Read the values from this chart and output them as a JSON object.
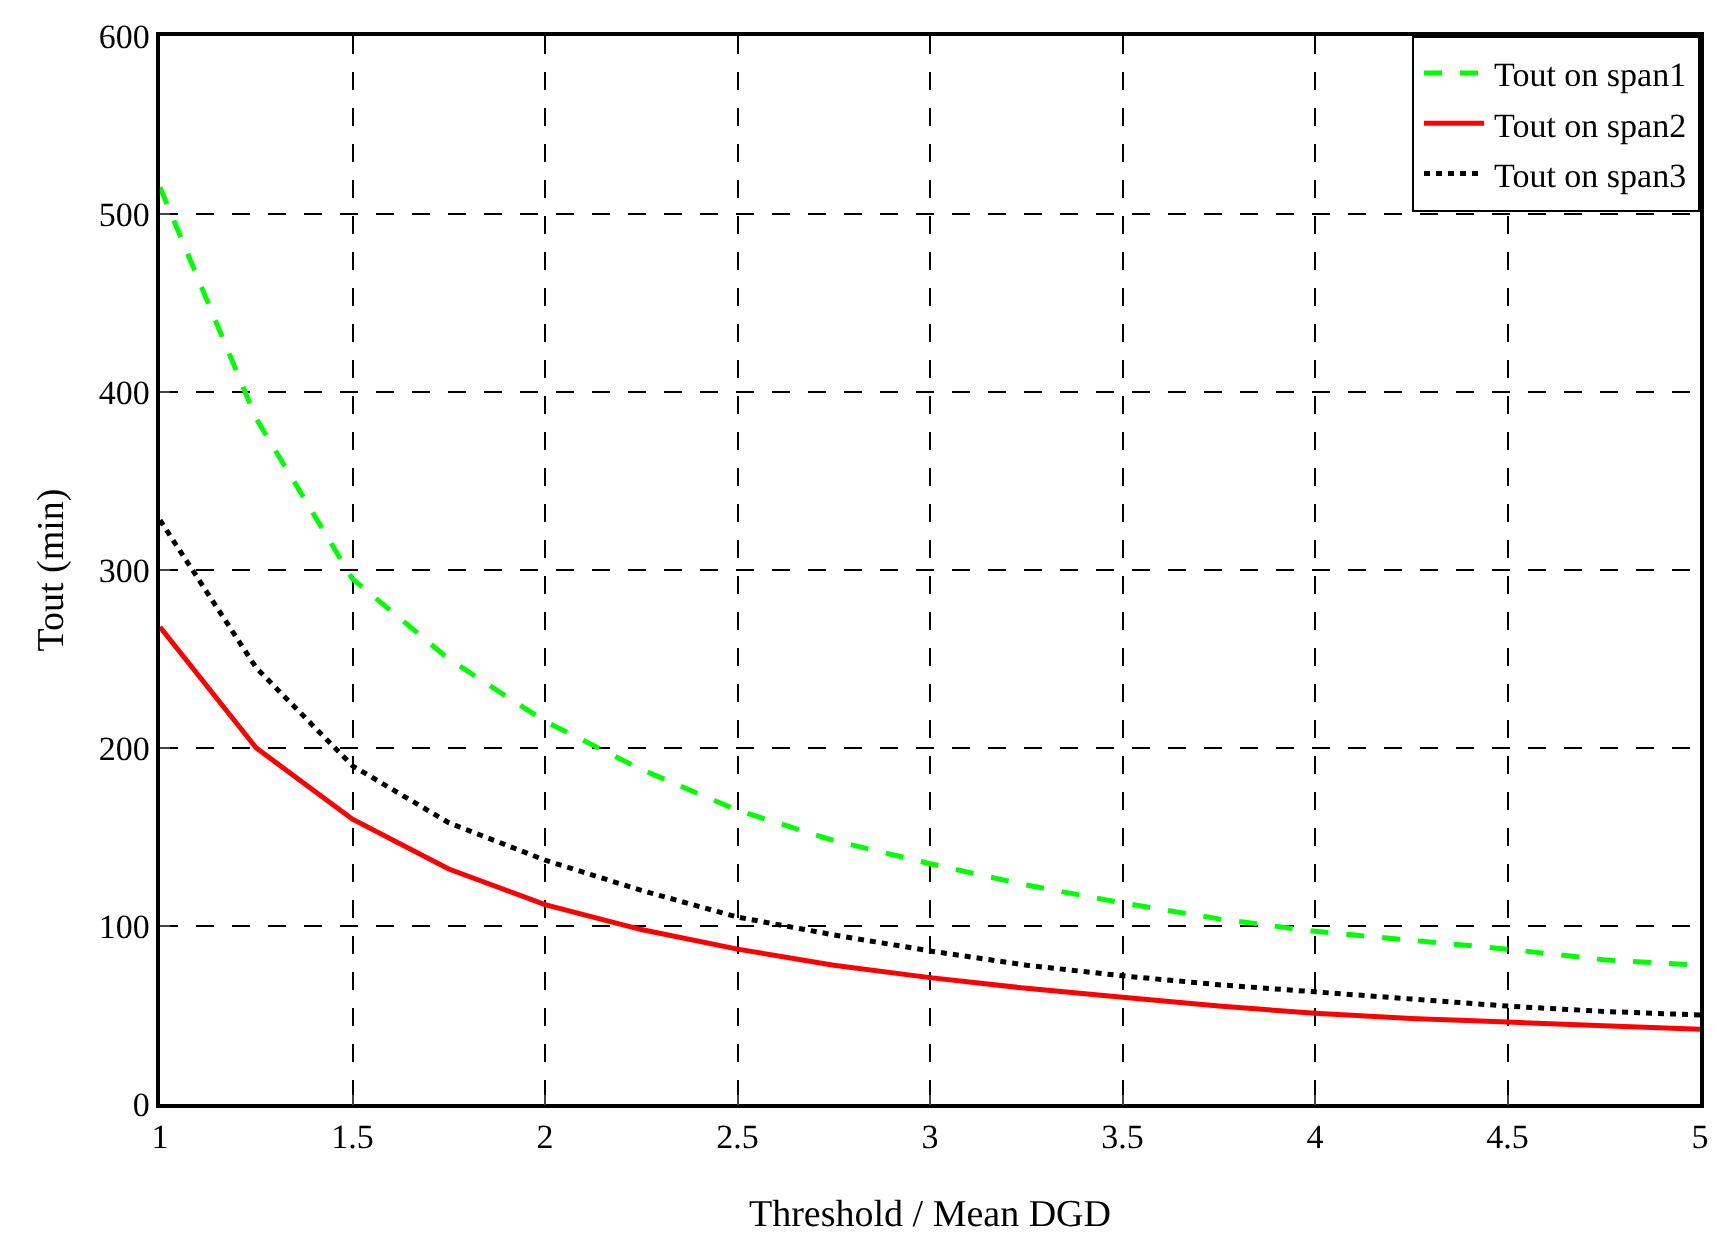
{
  "chart_data": {
    "type": "line",
    "xlabel": "Threshold / Mean DGD",
    "ylabel": "Tout (min)",
    "x": [
      1,
      1.25,
      1.5,
      1.75,
      2,
      2.25,
      2.5,
      2.75,
      3,
      3.25,
      3.5,
      3.75,
      4,
      4.25,
      4.5,
      4.75,
      5
    ],
    "series": [
      {
        "name": "Tout on span1",
        "color": "#00ff00",
        "line_style": "dashed",
        "values": [
          515,
          385,
          295,
          250,
          215,
          188,
          165,
          148,
          135,
          123,
          113,
          104,
          97,
          92,
          87,
          81,
          78
        ]
      },
      {
        "name": "Tout on span2",
        "color": "#ff0000",
        "line_style": "solid",
        "values": [
          268,
          200,
          160,
          132,
          112,
          98,
          87,
          78,
          71,
          65,
          60,
          55,
          51,
          48,
          46,
          44,
          42
        ]
      },
      {
        "name": "Tout on span3",
        "color": "#000000",
        "line_style": "dotted",
        "values": [
          328,
          245,
          190,
          158,
          137,
          120,
          105,
          95,
          86,
          78,
          72,
          67,
          63,
          59,
          55,
          52,
          50
        ]
      }
    ],
    "xlim": [
      1,
      5
    ],
    "xticks": [
      1,
      1.5,
      2,
      2.5,
      3,
      3.5,
      4,
      4.5,
      5
    ],
    "ylim": [
      0,
      600
    ],
    "yticks": [
      0,
      100,
      200,
      300,
      400,
      500,
      600
    ],
    "grid": true,
    "legend": "top right",
    "marker": "none"
  }
}
